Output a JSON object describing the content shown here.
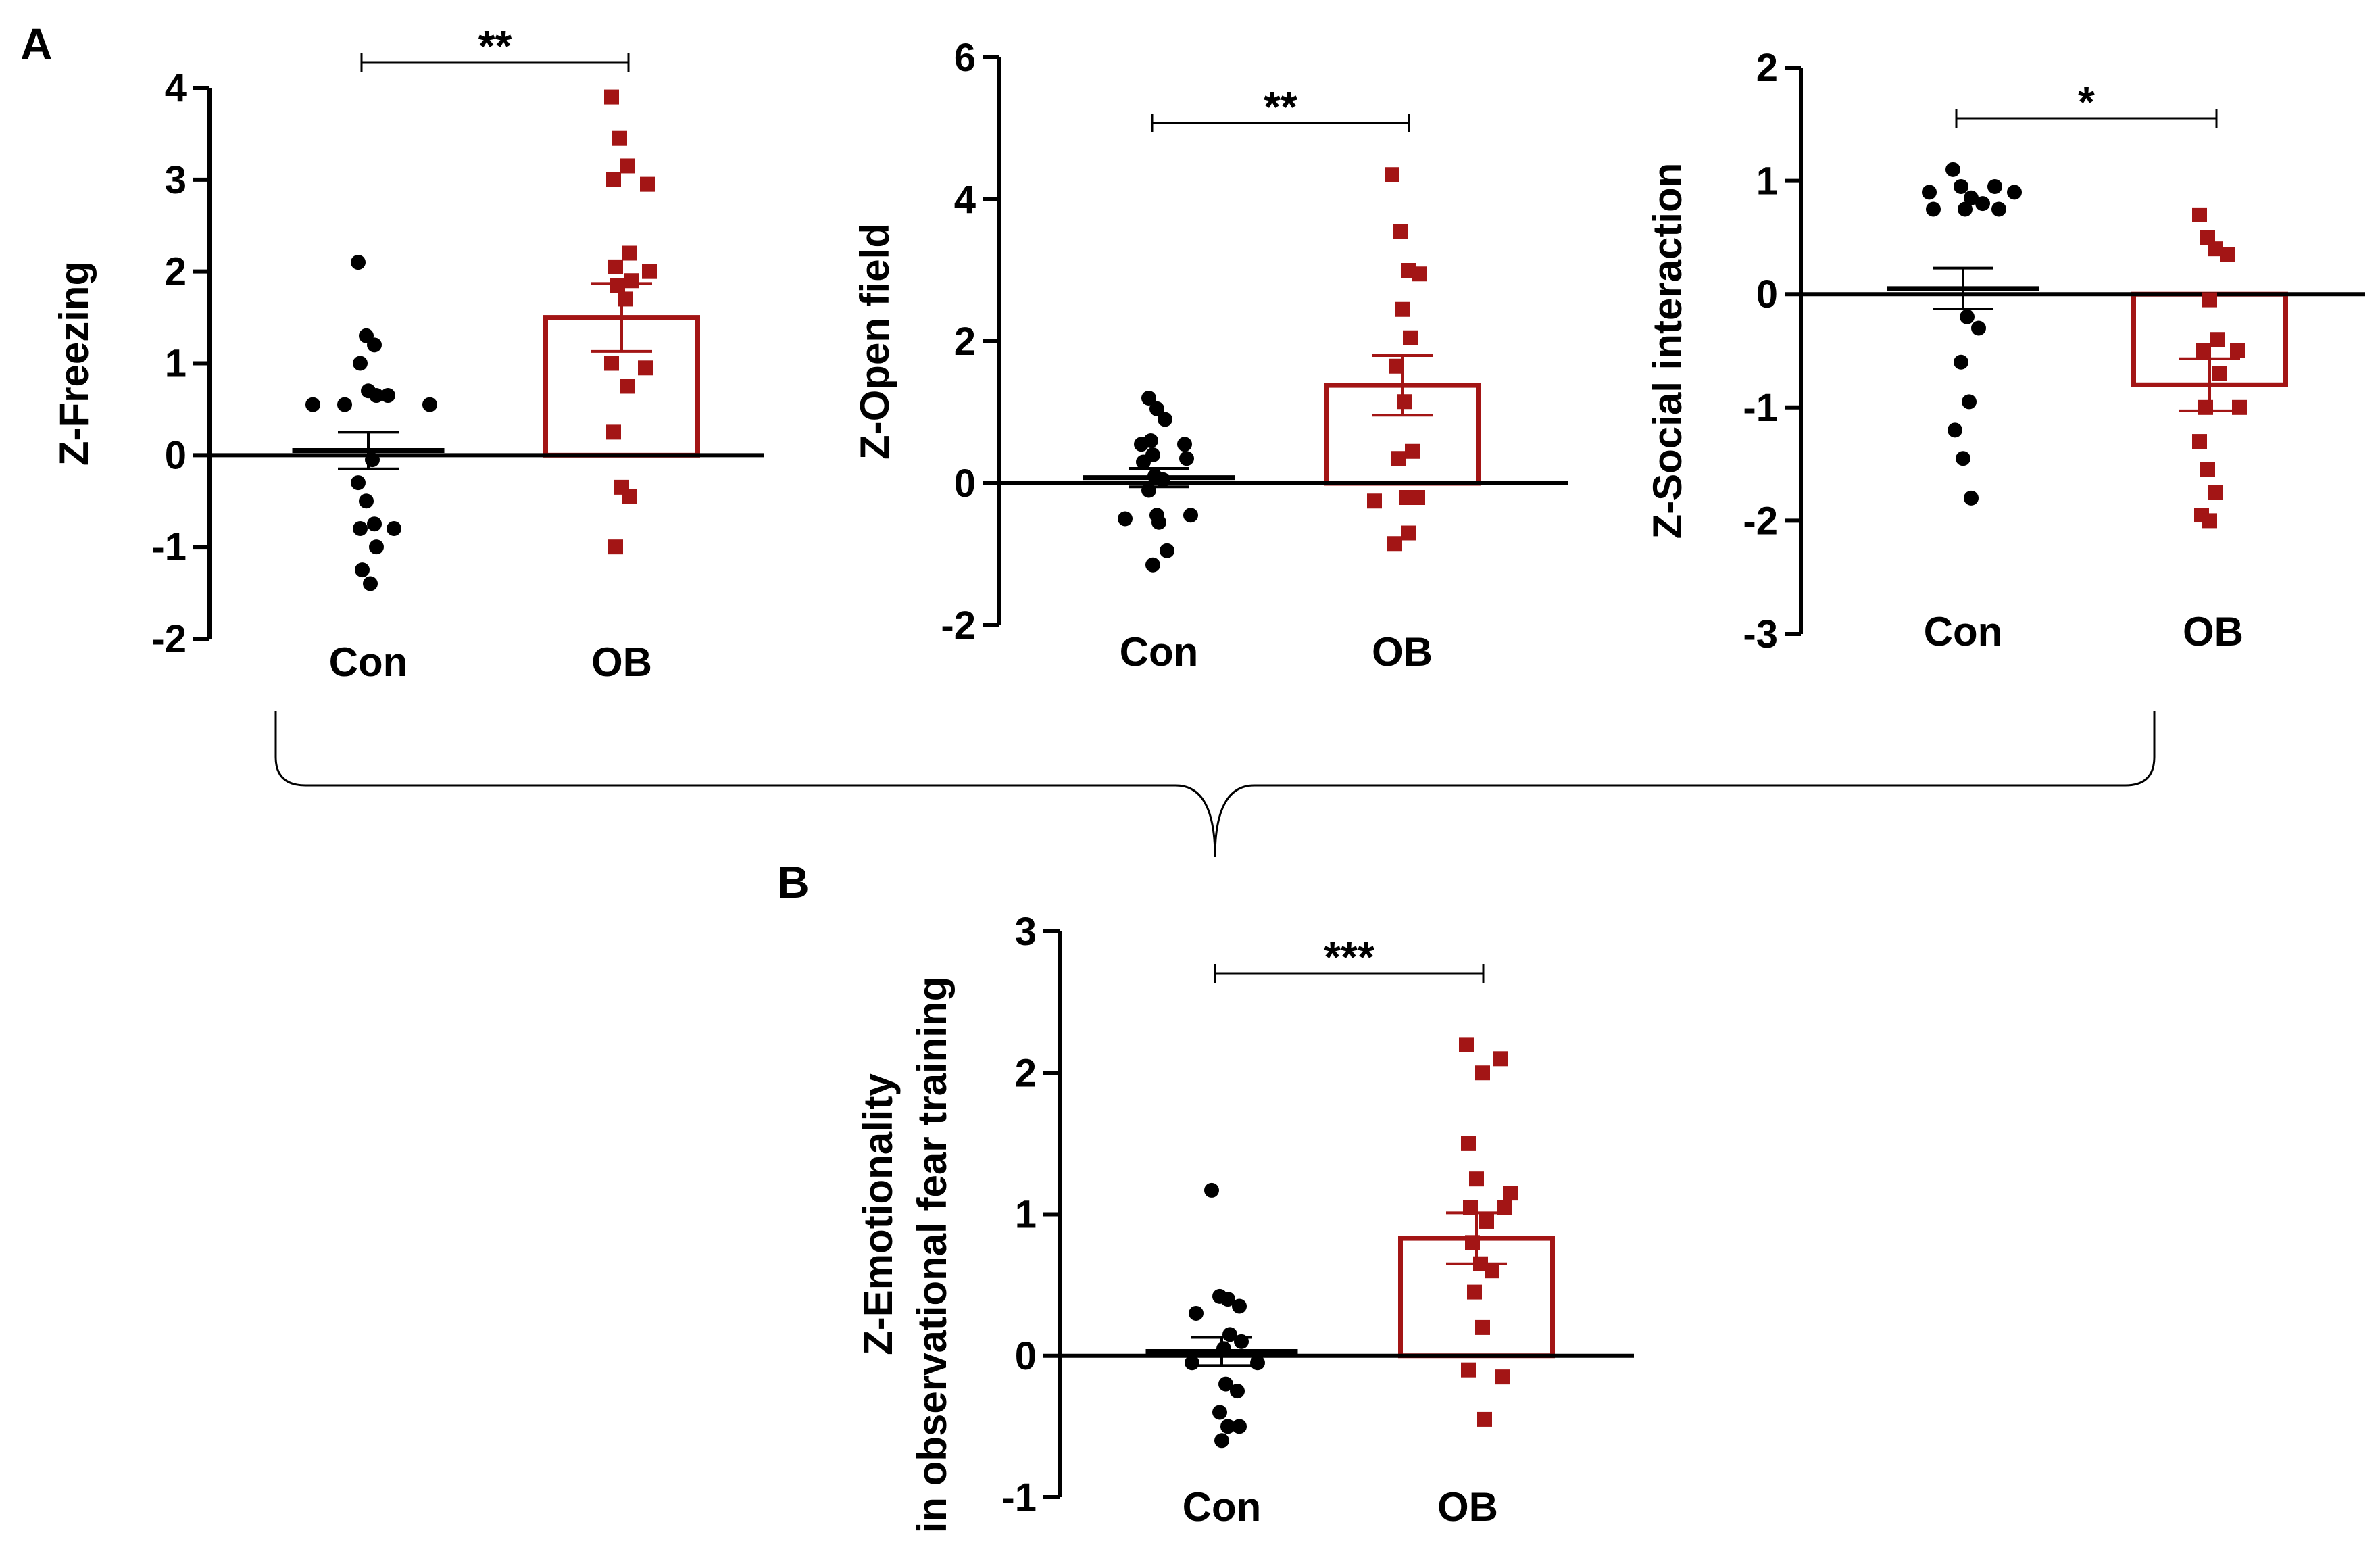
{
  "panel_labels": {
    "a": "A",
    "b": "B"
  },
  "colors": {
    "control": "#000000",
    "ob": "#a31515",
    "axis": "#000000"
  },
  "chart_data": [
    {
      "type": "bar",
      "id": "freezing",
      "title": "",
      "ylabel": "Z-Freezing",
      "xlabel": "",
      "ylim": [
        -2,
        4
      ],
      "yticks": [
        -2,
        -1,
        0,
        1,
        2,
        3,
        4
      ],
      "ytick_labels": [
        "-2",
        "-1",
        "0",
        "1",
        "2",
        "3",
        "4"
      ],
      "categories": [
        "Con",
        "OB"
      ],
      "means": [
        0.05,
        1.5
      ],
      "sem": [
        0.2,
        0.37
      ],
      "significance": "**",
      "points": [
        [
          2.1,
          1.3,
          1.2,
          1.0,
          0.7,
          0.65,
          0.65,
          0.55,
          0.55,
          0.55,
          -0.05,
          -0.3,
          -0.5,
          -0.75,
          -0.8,
          -0.8,
          -1.0,
          -1.25,
          -1.4
        ],
        [
          3.9,
          3.45,
          3.15,
          3.0,
          2.95,
          2.2,
          2.05,
          2.0,
          1.9,
          1.85,
          1.7,
          1.0,
          0.95,
          0.75,
          0.25,
          -0.35,
          -0.45,
          -1.0
        ]
      ]
    },
    {
      "type": "bar",
      "id": "open-field",
      "title": "",
      "ylabel": "Z-Open field",
      "xlabel": "",
      "ylim": [
        -2,
        6
      ],
      "yticks": [
        -2,
        0,
        2,
        4,
        6
      ],
      "ytick_labels": [
        "-2",
        "0",
        "2",
        "4",
        "6"
      ],
      "categories": [
        "Con",
        "OB"
      ],
      "means": [
        0.08,
        1.38
      ],
      "sem": [
        0.13,
        0.42
      ],
      "significance": "**",
      "points": [
        [
          1.2,
          1.05,
          0.9,
          0.6,
          0.55,
          0.55,
          0.4,
          0.35,
          0.3,
          0.1,
          0.05,
          -0.1,
          -0.45,
          -0.45,
          -0.5,
          -0.55,
          -0.95,
          -1.15
        ],
        [
          4.35,
          3.55,
          3.0,
          2.95,
          2.45,
          2.05,
          1.65,
          1.15,
          0.45,
          0.35,
          -0.2,
          -0.2,
          -0.25,
          -0.7,
          -0.85
        ]
      ]
    },
    {
      "type": "bar",
      "id": "social-interaction",
      "title": "",
      "ylabel": "Z-Social interaction",
      "xlabel": "",
      "ylim": [
        -3,
        2
      ],
      "yticks": [
        -3,
        -2,
        -1,
        0,
        1,
        2
      ],
      "ytick_labels": [
        "-3",
        "-2",
        "-1",
        "0",
        "1",
        "2"
      ],
      "categories": [
        "Con",
        "OB"
      ],
      "means": [
        0.05,
        -0.8
      ],
      "sem": [
        0.18,
        0.23
      ],
      "significance": "*",
      "points": [
        [
          1.1,
          0.95,
          0.95,
          0.9,
          0.9,
          0.85,
          0.8,
          0.75,
          0.75,
          0.75,
          -0.2,
          -0.3,
          -0.6,
          -0.95,
          -1.2,
          -1.45,
          -1.8
        ],
        [
          0.7,
          0.5,
          0.4,
          0.35,
          -0.05,
          -0.4,
          -0.5,
          -0.5,
          -0.7,
          -1.0,
          -1.0,
          -1.3,
          -1.55,
          -1.75,
          -1.95,
          -2.0
        ]
      ]
    },
    {
      "type": "bar",
      "id": "emotionality",
      "title": "",
      "ylabel": "Z-Emotionality",
      "ylabel_line2": "in observational fear training",
      "xlabel": "",
      "ylim": [
        -1,
        3
      ],
      "yticks": [
        -1,
        0,
        1,
        2,
        3
      ],
      "ytick_labels": [
        "-1",
        "0",
        "1",
        "2",
        "3"
      ],
      "categories": [
        "Con",
        "OB"
      ],
      "means": [
        0.03,
        0.83
      ],
      "sem": [
        0.1,
        0.18
      ],
      "significance": "***",
      "points": [
        [
          1.17,
          0.42,
          0.4,
          0.35,
          0.3,
          0.15,
          0.1,
          0.05,
          -0.05,
          -0.05,
          -0.2,
          -0.25,
          -0.4,
          -0.5,
          -0.5,
          -0.6
        ],
        [
          2.2,
          2.1,
          2.0,
          1.5,
          1.25,
          1.15,
          1.05,
          1.05,
          0.95,
          0.8,
          0.65,
          0.6,
          0.45,
          0.2,
          -0.1,
          -0.15,
          -0.45
        ]
      ]
    }
  ]
}
